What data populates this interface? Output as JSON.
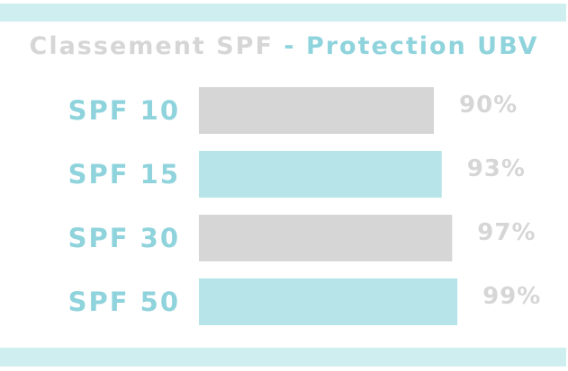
{
  "colors": {
    "band": "#cfeef0",
    "gray": "#d6d6d6",
    "teal": "#8fd3dc",
    "teal_bar": "#b7e4e8"
  },
  "title": {
    "part1": "Classement SPF",
    "separator": "-",
    "part2": "Protection UBV"
  },
  "chart_data": {
    "type": "bar",
    "orientation": "horizontal",
    "title": "Classement SPF - Protection UBV",
    "categories": [
      "SPF 10",
      "SPF 15",
      "SPF 30",
      "SPF 50"
    ],
    "values": [
      90,
      93,
      97,
      99
    ],
    "value_labels": [
      "90%",
      "93%",
      "97%",
      "99%"
    ],
    "xlim": [
      0,
      100
    ],
    "grid": false,
    "legend": false
  }
}
